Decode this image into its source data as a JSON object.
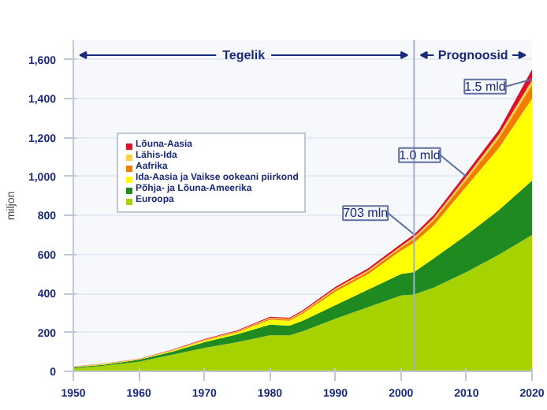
{
  "chart_data": {
    "type": "area",
    "stacked": true,
    "ylabel": "miljon",
    "x": [
      1950,
      1955,
      1960,
      1965,
      1970,
      1975,
      1980,
      1983,
      1985,
      1990,
      1995,
      2000,
      2002,
      2005,
      2010,
      2015,
      2020
    ],
    "series": [
      {
        "name": "Euroopa",
        "color": "#a6d200",
        "values": [
          15,
          30,
          50,
          85,
          120,
          150,
          185,
          185,
          205,
          270,
          330,
          390,
          395,
          430,
          510,
          600,
          700
        ]
      },
      {
        "name": "Põhja- ja Lõuna-Ameerika",
        "color": "#1f8a1f",
        "values": [
          5,
          5,
          10,
          15,
          30,
          40,
          55,
          50,
          55,
          70,
          90,
          110,
          115,
          150,
          190,
          230,
          280
        ]
      },
      {
        "name": "Ida-Aasia ja Vaikse ookeani piirkond",
        "color": "#ffff00",
        "values": [
          2,
          3,
          2,
          5,
          8,
          10,
          25,
          25,
          35,
          70,
          80,
          120,
          150,
          170,
          250,
          320,
          420
        ]
      },
      {
        "name": "Aafrika",
        "color": "#f07c00",
        "values": [
          1,
          1,
          1,
          2,
          3,
          4,
          6,
          6,
          8,
          10,
          12,
          15,
          20,
          25,
          35,
          50,
          70
        ]
      },
      {
        "name": "Lähis-Ida",
        "color": "#ffd040",
        "values": [
          1,
          1,
          1,
          1,
          2,
          2,
          4,
          4,
          5,
          6,
          7,
          8,
          10,
          12,
          15,
          18,
          25
        ]
      },
      {
        "name": "Lõuna-Aasia",
        "color": "#e0102a",
        "values": [
          1,
          1,
          1,
          2,
          3,
          4,
          5,
          5,
          6,
          8,
          10,
          12,
          13,
          15,
          20,
          25,
          55
        ]
      }
    ],
    "xlim": [
      1950,
      2020
    ],
    "xticks": [
      1950,
      1960,
      1970,
      1980,
      1990,
      2000,
      2010,
      2020
    ],
    "ylim": [
      0,
      1700
    ],
    "yticks": [
      0,
      200,
      400,
      600,
      800,
      {
        "value": 1000,
        "label": "1,000"
      },
      {
        "value": 1200,
        "label": "1,200"
      },
      {
        "value": 1400,
        "label": "1,400"
      },
      {
        "value": 1600,
        "label": "1,600"
      }
    ],
    "grid": "y",
    "legend": "top left",
    "ref_lines": [
      {
        "axis": "x",
        "value": 2002,
        "color": "#a0b0d0"
      }
    ],
    "bands": [
      {
        "axis": "x",
        "from": 1950,
        "to": 2002,
        "label": "Tegelik"
      },
      {
        "axis": "x",
        "from": 2002,
        "to": 2020,
        "label": "Prognoosid"
      }
    ],
    "annotations": [
      {
        "text": "703 mln",
        "x": 2002,
        "y": 703
      },
      {
        "text": "1.0 mld",
        "x": 2010,
        "y": 1000
      },
      {
        "text": "1.5 mld",
        "x": 2020,
        "y": 1500
      }
    ]
  }
}
